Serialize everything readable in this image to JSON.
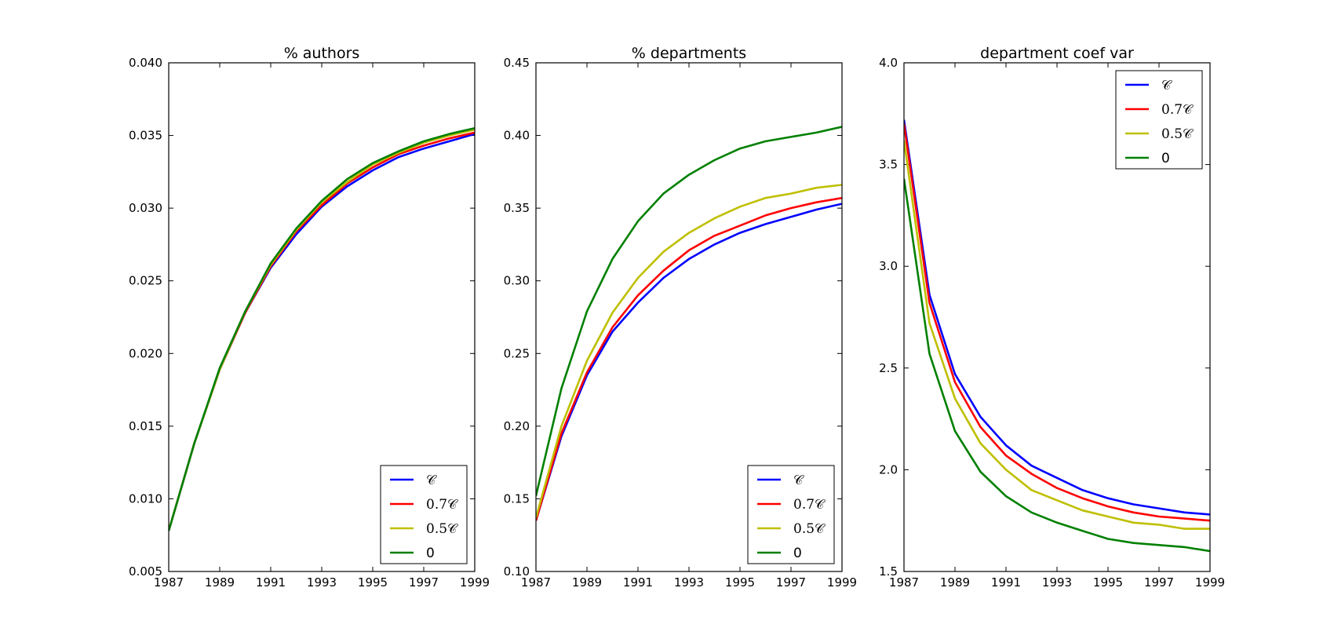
{
  "chart_data": [
    {
      "type": "line",
      "title": "% authors",
      "x": [
        1987,
        1988,
        1989,
        1990,
        1991,
        1992,
        1993,
        1994,
        1995,
        1996,
        1997,
        1998,
        1999
      ],
      "xticks": [
        "1987",
        "1989",
        "1991",
        "1993",
        "1995",
        "1997",
        "1999"
      ],
      "yticks": [
        "0.005",
        "0.010",
        "0.015",
        "0.020",
        "0.025",
        "0.030",
        "0.035",
        "0.040"
      ],
      "xlim": [
        1987,
        1999
      ],
      "ylim": [
        0.005,
        0.04
      ],
      "legend_loc": "lower-right",
      "series": [
        {
          "name": "𝒞",
          "color": "#0000ff",
          "values": [
            0.0078,
            0.0138,
            0.0189,
            0.0228,
            0.0259,
            0.0282,
            0.0301,
            0.0315,
            0.0326,
            0.0335,
            0.0341,
            0.0346,
            0.0351
          ]
        },
        {
          "name": "0.7𝒞",
          "color": "#ff0000",
          "values": [
            0.0078,
            0.0138,
            0.0189,
            0.0228,
            0.026,
            0.0284,
            0.0302,
            0.0317,
            0.0328,
            0.0337,
            0.0343,
            0.0348,
            0.0352
          ]
        },
        {
          "name": "0.5𝒞",
          "color": "#bfbf00",
          "values": [
            0.0078,
            0.0138,
            0.0189,
            0.0229,
            0.0261,
            0.0285,
            0.0304,
            0.0318,
            0.033,
            0.0338,
            0.0345,
            0.035,
            0.0354
          ]
        },
        {
          "name": "0",
          "color": "#008000",
          "values": [
            0.0078,
            0.0138,
            0.019,
            0.0229,
            0.0262,
            0.0286,
            0.0305,
            0.032,
            0.0331,
            0.0339,
            0.0346,
            0.0351,
            0.0355
          ]
        }
      ]
    },
    {
      "type": "line",
      "title": "% departments",
      "x": [
        1987,
        1988,
        1989,
        1990,
        1991,
        1992,
        1993,
        1994,
        1995,
        1996,
        1997,
        1998,
        1999
      ],
      "xticks": [
        "1987",
        "1989",
        "1991",
        "1993",
        "1995",
        "1997",
        "1999"
      ],
      "yticks": [
        "0.10",
        "0.15",
        "0.20",
        "0.25",
        "0.30",
        "0.35",
        "0.40",
        "0.45"
      ],
      "xlim": [
        1987,
        1999
      ],
      "ylim": [
        0.1,
        0.45
      ],
      "legend_loc": "lower-right",
      "series": [
        {
          "name": "𝒞",
          "color": "#0000ff",
          "values": [
            0.135,
            0.193,
            0.235,
            0.265,
            0.285,
            0.302,
            0.315,
            0.325,
            0.333,
            0.339,
            0.344,
            0.349,
            0.353
          ]
        },
        {
          "name": "0.7𝒞",
          "color": "#ff0000",
          "values": [
            0.135,
            0.195,
            0.237,
            0.268,
            0.29,
            0.307,
            0.321,
            0.331,
            0.338,
            0.345,
            0.35,
            0.354,
            0.357
          ]
        },
        {
          "name": "0.5𝒞",
          "color": "#bfbf00",
          "values": [
            0.137,
            0.2,
            0.245,
            0.278,
            0.302,
            0.32,
            0.333,
            0.343,
            0.351,
            0.357,
            0.36,
            0.364,
            0.366
          ]
        },
        {
          "name": "0",
          "color": "#008000",
          "values": [
            0.152,
            0.226,
            0.279,
            0.315,
            0.341,
            0.36,
            0.373,
            0.383,
            0.391,
            0.396,
            0.399,
            0.402,
            0.406
          ]
        }
      ]
    },
    {
      "type": "line",
      "title": "department coef var",
      "x": [
        1987,
        1988,
        1989,
        1990,
        1991,
        1992,
        1993,
        1994,
        1995,
        1996,
        1997,
        1998,
        1999
      ],
      "xticks": [
        "1987",
        "1989",
        "1991",
        "1993",
        "1995",
        "1997",
        "1999"
      ],
      "yticks": [
        "1.5",
        "2.0",
        "2.5",
        "3.0",
        "3.5",
        "4.0"
      ],
      "xlim": [
        1987,
        1999
      ],
      "ylim": [
        1.5,
        4.0
      ],
      "legend_loc": "upper-right",
      "series": [
        {
          "name": "𝒞",
          "color": "#0000ff",
          "values": [
            3.72,
            2.86,
            2.47,
            2.26,
            2.12,
            2.02,
            1.96,
            1.9,
            1.86,
            1.83,
            1.81,
            1.79,
            1.78
          ]
        },
        {
          "name": "0.7𝒞",
          "color": "#ff0000",
          "values": [
            3.7,
            2.82,
            2.43,
            2.21,
            2.07,
            1.98,
            1.91,
            1.86,
            1.82,
            1.79,
            1.77,
            1.76,
            1.75
          ]
        },
        {
          "name": "0.5𝒞",
          "color": "#bfbf00",
          "values": [
            3.62,
            2.72,
            2.35,
            2.13,
            2.0,
            1.9,
            1.85,
            1.8,
            1.77,
            1.74,
            1.73,
            1.71,
            1.71
          ]
        },
        {
          "name": "0",
          "color": "#008000",
          "values": [
            3.43,
            2.57,
            2.19,
            1.99,
            1.87,
            1.79,
            1.74,
            1.7,
            1.66,
            1.64,
            1.63,
            1.62,
            1.6
          ]
        }
      ]
    }
  ]
}
